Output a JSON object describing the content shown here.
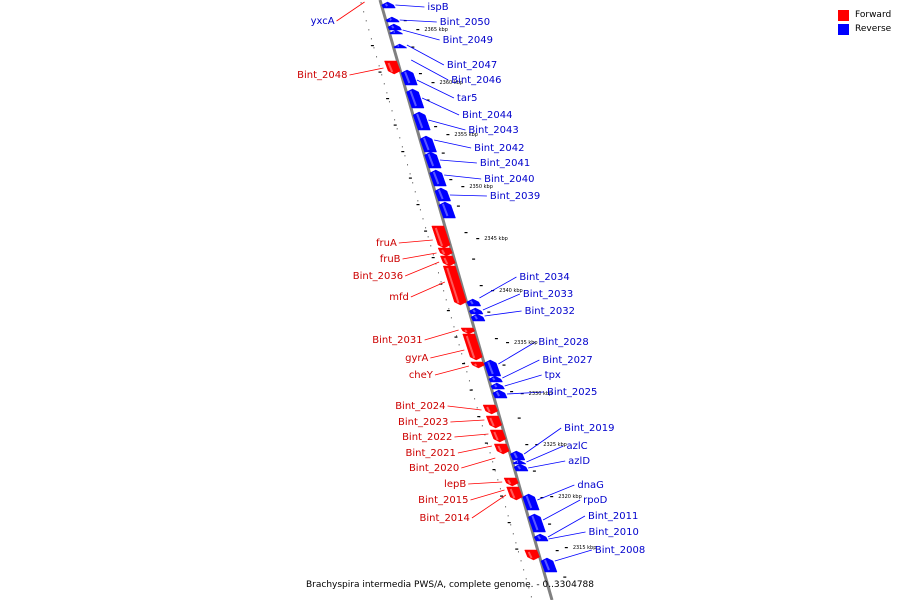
{
  "caption": "Brachyspira intermedia PWS/A, complete genome. - 0..3304788",
  "legend": [
    {
      "label": "Forward",
      "color": "#ff0000"
    },
    {
      "label": "Reverse",
      "color": "#0000ff"
    }
  ],
  "colors": {
    "forward": "#ff0000",
    "forward_label": "#cc0000",
    "reverse": "#0000ff",
    "reverse_label": "#0000cc",
    "backbone": "#808080"
  },
  "scale_labels": [
    "2365 kbp",
    "2360 kbp",
    "2355 kbp",
    "2350 kbp",
    "2345 kbp",
    "2340 kbp",
    "2335 kbp",
    "2330 kbp",
    "2325 kbp",
    "2320 kbp",
    "2315 kbp"
  ],
  "reverse_genes": [
    "ispB",
    "Bint_2050",
    "Bint_2049",
    "Bint_2047",
    "Bint_2046",
    "tar5",
    "Bint_2044",
    "Bint_2043",
    "Bint_2042",
    "Bint_2041",
    "Bint_2040",
    "Bint_2039",
    "Bint_2034",
    "Bint_2033",
    "Bint_2032",
    "Bint_2028",
    "Bint_2027",
    "tpx",
    "Bint_2025",
    "Bint_2019",
    "azlC",
    "azlD",
    "dnaG",
    "rpoD",
    "Bint_2011",
    "Bint_2010",
    "Bint_2008"
  ],
  "forward_genes": [
    "yxcA",
    "Bint_2048",
    "fruA",
    "fruB",
    "Bint_2036",
    "mfd",
    "Bint_2031",
    "gyrA",
    "cheY",
    "Bint_2024",
    "Bint_2023",
    "Bint_2022",
    "Bint_2021",
    "Bint_2020",
    "lepB",
    "Bint_2015",
    "Bint_2014"
  ]
}
